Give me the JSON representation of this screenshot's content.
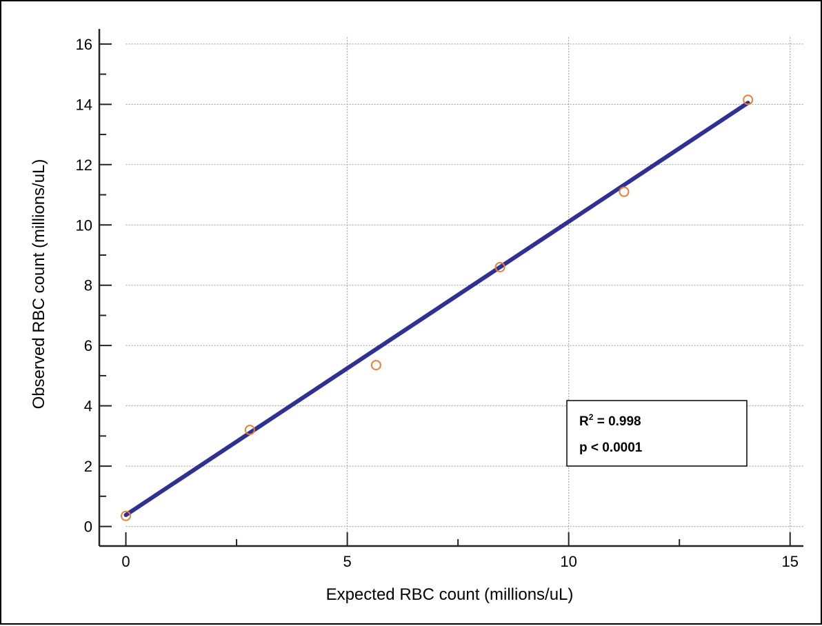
{
  "chart_data": {
    "type": "scatter",
    "xlabel": "Expected RBC count (millions/uL)",
    "ylabel": "Observed RBC count (millions/uL)",
    "xlim": [
      -0.6,
      15.3
    ],
    "ylim": [
      -0.65,
      16.5
    ],
    "xticks": [
      0,
      5,
      10,
      15
    ],
    "yticks": [
      0,
      2,
      4,
      6,
      8,
      10,
      12,
      14,
      16
    ],
    "xtick_labels": [
      "0",
      "5",
      "10",
      "15"
    ],
    "ytick_labels": [
      "0",
      "2",
      "4",
      "6",
      "8",
      "10",
      "12",
      "14",
      "16"
    ],
    "x_minor_step": 2.5,
    "y_minor_step": 1,
    "grid": true,
    "series": [
      {
        "kind": "points",
        "color": "#ED7D31",
        "x": [
          0.0,
          2.8,
          5.65,
          8.45,
          11.25,
          14.05
        ],
        "y": [
          0.35,
          3.2,
          5.35,
          8.6,
          11.1,
          14.15
        ]
      },
      {
        "kind": "fit-line",
        "color": "#2E3192",
        "x": [
          0.0,
          14.05
        ],
        "y": [
          0.38,
          14.05
        ]
      }
    ],
    "annotation": {
      "r2_prefix": "R",
      "r2_sup": "2",
      "r2_suffix": " = 0.998",
      "p_text": "p < 0.0001",
      "placement": "lower-right"
    }
  }
}
